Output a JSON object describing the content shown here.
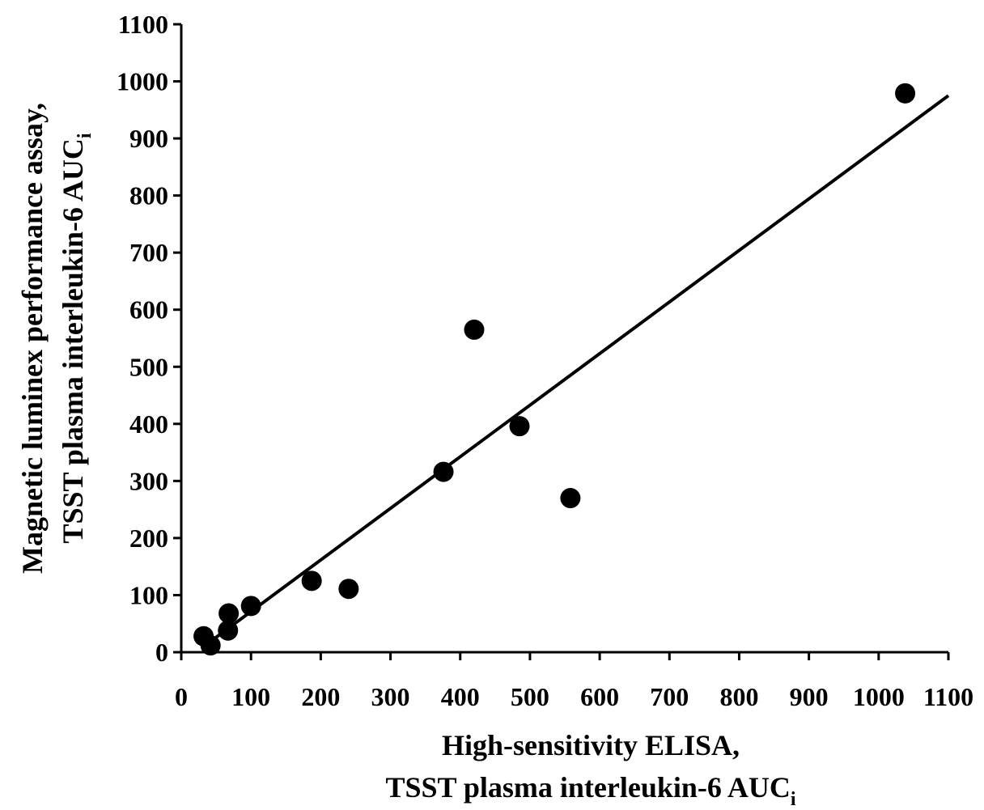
{
  "chart_data": {
    "type": "scatter",
    "title": "",
    "xlabel": {
      "line1": "High-sensitivity ELISA,",
      "line2": "TSST plasma interleukin-6 AUC",
      "subscript": "i"
    },
    "ylabel": {
      "line1": "Magnetic luminex performance assay,",
      "line2": "TSST plasma interleukin-6 AUC",
      "subscript": "i"
    },
    "xlim": [
      0,
      1100
    ],
    "ylim": [
      0,
      1100
    ],
    "xticks": [
      0,
      100,
      200,
      300,
      400,
      500,
      600,
      700,
      800,
      900,
      1000,
      1100
    ],
    "yticks": [
      0,
      100,
      200,
      300,
      400,
      500,
      600,
      700,
      800,
      900,
      1000,
      1100
    ],
    "grid": false,
    "marker_color": "#000000",
    "points": [
      {
        "x": 32,
        "y": 28
      },
      {
        "x": 42,
        "y": 12
      },
      {
        "x": 67,
        "y": 38
      },
      {
        "x": 68,
        "y": 68
      },
      {
        "x": 100,
        "y": 81
      },
      {
        "x": 187,
        "y": 125
      },
      {
        "x": 240,
        "y": 111
      },
      {
        "x": 376,
        "y": 316
      },
      {
        "x": 420,
        "y": 565
      },
      {
        "x": 485,
        "y": 396
      },
      {
        "x": 558,
        "y": 270
      },
      {
        "x": 1038,
        "y": 979
      }
    ],
    "trendline": {
      "x": [
        30,
        1100
      ],
      "y": [
        8,
        975
      ]
    }
  }
}
